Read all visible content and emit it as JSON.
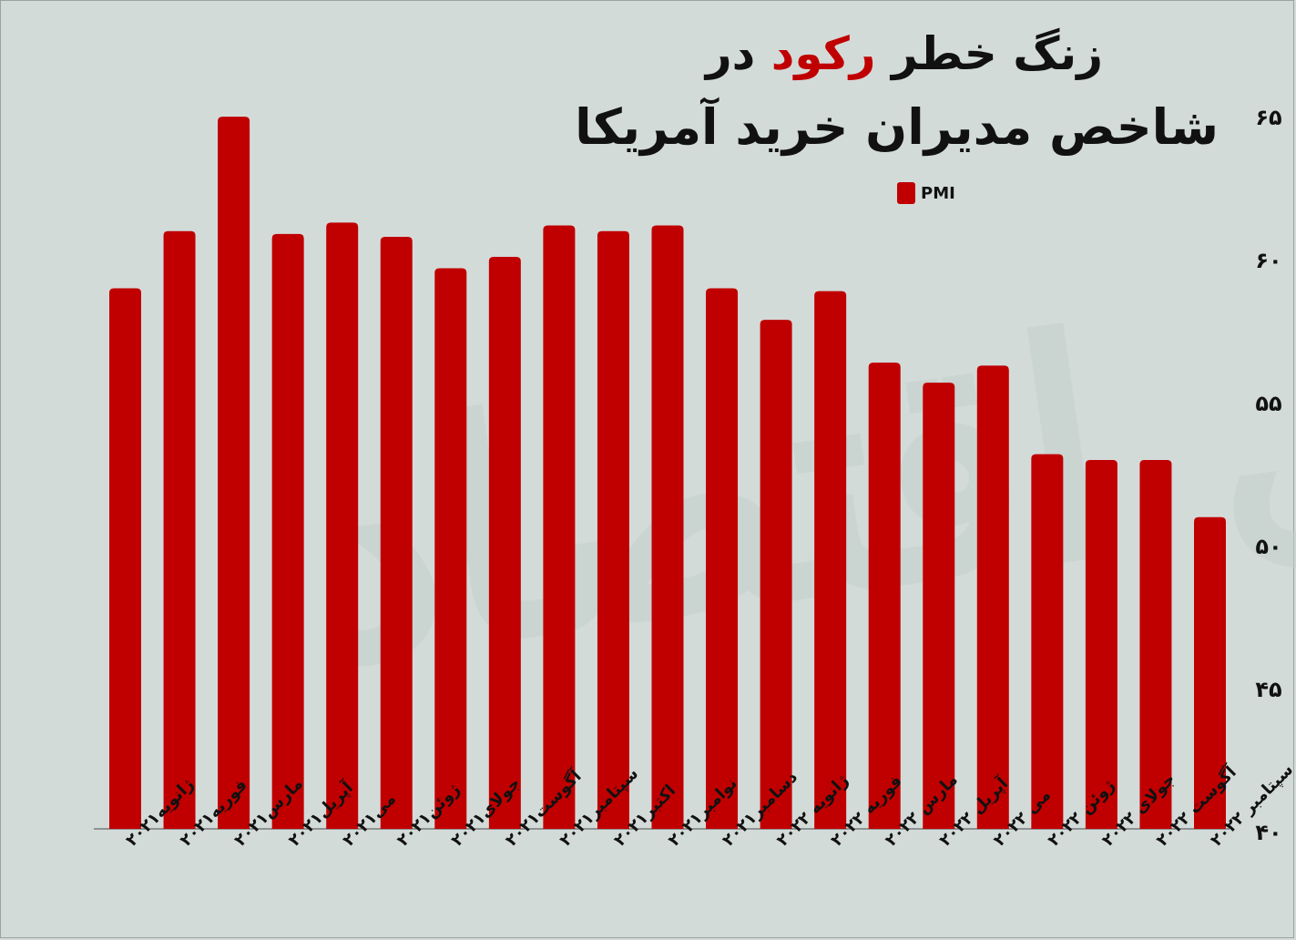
{
  "title": {
    "line1_before": "زنگ خطر ",
    "line1_accent": "رکود",
    "line1_after": " در",
    "line2": "شاخص مدیران خرید آمریکا"
  },
  "colors": {
    "bar": "#c00000",
    "accent": "#c00000",
    "background": "#d3dbd9"
  },
  "chart_data": {
    "type": "bar",
    "categories": [
      "ژانویه۲۰۲۱",
      "فوریه۲۰۲۱",
      "مارس۲۰۲۱",
      "آپریل۲۰۲۱",
      "می۲۰۲۱",
      "ژوئن۲۰۲۱",
      "جولای۲۰۲۱",
      "آگوست۲۰۲۱",
      "سپتامبر۲۰۲۱",
      "اکتبر۲۰۲۱",
      "نوامبر۲۰۲۱",
      "دسامبر۲۰۲۱",
      "ژانویه ۲۰۲۲",
      "فوریه ۲۰۲۲",
      "مارس ۲۰۲۲",
      "آپریل ۲۰۲۲",
      "می ۲۰۲۲",
      "ژوئن ۲۰۲۲",
      "جولای ۲۰۲۲",
      "آگوست ۲۰۲۲",
      "سپتامبر ۲۰۲۲"
    ],
    "series": [
      {
        "name": "PMI",
        "values": [
          58.9,
          60.9,
          64.9,
          60.8,
          61.2,
          60.7,
          59.6,
          60.0,
          61.1,
          60.9,
          61.1,
          58.9,
          57.8,
          58.8,
          56.3,
          55.6,
          56.2,
          53.1,
          52.9,
          52.9,
          50.9
        ]
      }
    ],
    "yticks": [
      "۴۰",
      "۴۵",
      "۵۰",
      "۵۵",
      "۶۰",
      "۶۵"
    ],
    "ylim": [
      40,
      65
    ],
    "legend_position": "top-right"
  },
  "watermark": "دنیای اقتصاد"
}
